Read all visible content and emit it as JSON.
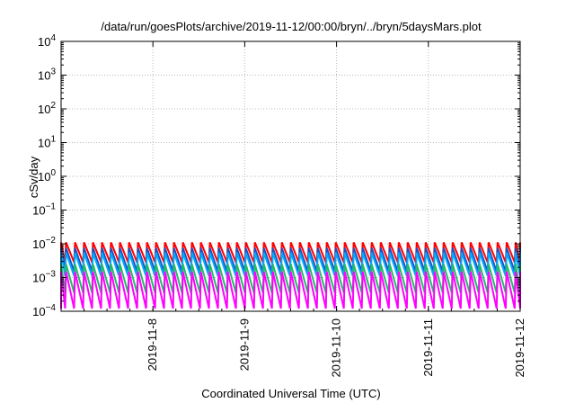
{
  "chart_data": {
    "type": "line",
    "title": "/data/run/goesPlots/archive/2019-11-12/00:00/bryn/../bryn/5daysMars.plot",
    "xlabel": "Coordinated Universal Time (UTC)",
    "ylabel": "cSv/day",
    "y_scale": "log",
    "ylim_exp": [
      -4,
      4
    ],
    "y_tick_exponents": [
      -4,
      -3,
      -2,
      -1,
      0,
      1,
      2,
      3,
      4
    ],
    "x_range": [
      "2019-11-07 00:00",
      "2019-11-12 00:00"
    ],
    "x_ticks": [
      "2019-11-8",
      "2019-11-9",
      "2019-11-10",
      "2019-11-11",
      "2019-11-12"
    ],
    "grid": true,
    "legend": "none",
    "period_hours": 2.35,
    "series": [
      {
        "color": "#ff0000",
        "peak": 0.011,
        "trough": 0.0028
      },
      {
        "color": "#1f4fbf",
        "peak": 0.0075,
        "trough": 0.0015
      },
      {
        "color": "#00aaff",
        "peak": 0.0055,
        "trough": 0.0011
      },
      {
        "color": "#22bb66",
        "peak": 0.0025,
        "trough": 0.00035
      },
      {
        "color": "#ff00ff",
        "peak": 0.0015,
        "trough": 0.00012
      }
    ]
  }
}
